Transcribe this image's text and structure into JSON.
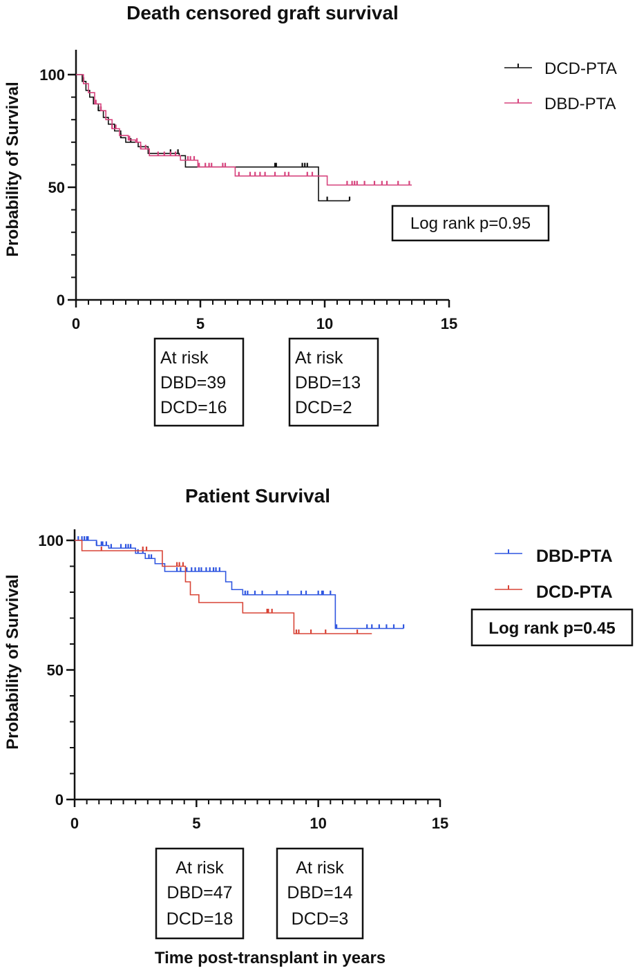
{
  "chart_data": [
    {
      "type": "line",
      "subtype": "kaplan-meier",
      "title": "Death censored graft survival",
      "xlabel": "",
      "ylabel": "Probability of Survival",
      "xlim": [
        0,
        15
      ],
      "ylim": [
        0,
        100
      ],
      "x_ticks": [
        "0",
        "5",
        "10",
        "15"
      ],
      "y_ticks": [
        "0",
        "50",
        "100"
      ],
      "legend_position": "top-right",
      "legend_style": "normal",
      "series": [
        {
          "name": "DCD-PTA",
          "color": "#111111",
          "steps": [
            [
              0,
              100
            ],
            [
              0.25,
              97
            ],
            [
              0.4,
              93
            ],
            [
              0.55,
              90
            ],
            [
              0.7,
              87
            ],
            [
              0.9,
              84
            ],
            [
              1.1,
              81
            ],
            [
              1.3,
              78
            ],
            [
              1.55,
              75
            ],
            [
              1.8,
              72
            ],
            [
              2.0,
              70
            ],
            [
              2.35,
              70
            ],
            [
              2.5,
              68
            ],
            [
              2.9,
              65
            ],
            [
              3.3,
              65
            ],
            [
              4.15,
              64
            ],
            [
              4.4,
              59
            ],
            [
              6.0,
              59
            ],
            [
              9.7,
              59
            ],
            [
              9.75,
              44
            ],
            [
              11.0,
              44
            ]
          ],
          "censor_x": [
            0.3,
            0.9,
            1.0,
            1.8,
            2.2,
            3.8,
            4.1,
            8.0,
            8.05,
            9.1,
            9.2,
            9.3,
            10.1,
            11.0
          ]
        },
        {
          "name": "DBD-PTA",
          "color": "#d6437d",
          "steps": [
            [
              0,
              100
            ],
            [
              0.3,
              96
            ],
            [
              0.5,
              92
            ],
            [
              0.75,
              87
            ],
            [
              1.0,
              84
            ],
            [
              1.2,
              80
            ],
            [
              1.45,
              76
            ],
            [
              1.75,
              73
            ],
            [
              2.1,
              71
            ],
            [
              2.4,
              70
            ],
            [
              2.6,
              67
            ],
            [
              2.95,
              64
            ],
            [
              3.7,
              64
            ],
            [
              4.2,
              62
            ],
            [
              4.9,
              59
            ],
            [
              5.9,
              59
            ],
            [
              6.4,
              55
            ],
            [
              9.5,
              55
            ],
            [
              10.1,
              51
            ],
            [
              13.5,
              51
            ]
          ],
          "censor_x": [
            0.8,
            1.0,
            1.45,
            1.6,
            2.15,
            2.45,
            2.6,
            2.8,
            3.3,
            3.55,
            3.8,
            4.0,
            4.5,
            4.6,
            4.75,
            4.95,
            5.2,
            5.35,
            5.45,
            5.9,
            6.0,
            6.55,
            7.0,
            7.2,
            7.4,
            7.6,
            8.0,
            8.4,
            8.55,
            9.3,
            9.5,
            10.9,
            11.1,
            11.2,
            11.3,
            11.6,
            12.0,
            12.3,
            12.5,
            12.95,
            13.4
          ]
        }
      ],
      "annotation": "Log rank p=0.95",
      "at_risk": [
        {
          "lines": [
            "At risk",
            "DBD=39",
            "DCD=16"
          ]
        },
        {
          "lines": [
            "At risk",
            "DBD=13",
            "DCD=2"
          ]
        }
      ]
    },
    {
      "type": "line",
      "subtype": "kaplan-meier",
      "title": "Patient Survival",
      "xlabel": "Time post-transplant in years",
      "ylabel": "Probability of Survival",
      "xlim": [
        0,
        15
      ],
      "ylim": [
        0,
        100
      ],
      "x_ticks": [
        "0",
        "5",
        "10",
        "15"
      ],
      "y_ticks": [
        "0",
        "50",
        "100"
      ],
      "legend_position": "top-right",
      "legend_style": "bold",
      "series": [
        {
          "name": "DBD-PTA",
          "color": "#2f56e0",
          "steps": [
            [
              0,
              100
            ],
            [
              0.9,
              98
            ],
            [
              1.4,
              97
            ],
            [
              2.5,
              95
            ],
            [
              2.9,
              93
            ],
            [
              3.3,
              91
            ],
            [
              3.7,
              88
            ],
            [
              5.95,
              88
            ],
            [
              6.2,
              84
            ],
            [
              6.45,
              81
            ],
            [
              6.9,
              79
            ],
            [
              10.6,
              79
            ],
            [
              10.7,
              66
            ],
            [
              13.5,
              66
            ]
          ],
          "censor_x": [
            0.15,
            0.3,
            0.4,
            0.5,
            0.55,
            0.9,
            1.1,
            1.15,
            1.3,
            1.5,
            1.9,
            2.1,
            2.2,
            2.3,
            2.6,
            2.8,
            3.05,
            3.15,
            4.2,
            4.35,
            4.6,
            4.8,
            4.95,
            5.1,
            5.2,
            5.4,
            5.55,
            5.7,
            5.8,
            5.95,
            7.0,
            7.1,
            7.4,
            7.7,
            8.3,
            8.75,
            9.3,
            9.5,
            10.0,
            10.15,
            10.2,
            10.5,
            10.75,
            12.0,
            12.2,
            12.5,
            12.8,
            13.1,
            13.5
          ]
        },
        {
          "name": "DCD-PTA",
          "color": "#d84436",
          "steps": [
            [
              0,
              100
            ],
            [
              0.3,
              96
            ],
            [
              3.5,
              96
            ],
            [
              3.6,
              90
            ],
            [
              4.5,
              90
            ],
            [
              4.55,
              84
            ],
            [
              4.75,
              79
            ],
            [
              5.1,
              76
            ],
            [
              6.7,
              76
            ],
            [
              6.9,
              72
            ],
            [
              8.9,
              72
            ],
            [
              9.0,
              64
            ],
            [
              12.2,
              64
            ]
          ],
          "censor_x": [
            1.1,
            2.8,
            2.95,
            4.2,
            4.3,
            4.45,
            7.9,
            7.95,
            8.1,
            9.1,
            9.2,
            9.7,
            10.3,
            11.6
          ]
        }
      ],
      "annotation": "Log rank p=0.45",
      "at_risk": [
        {
          "lines": [
            "At risk",
            "DBD=47",
            "DCD=18"
          ]
        },
        {
          "lines": [
            "At risk",
            "DBD=14",
            "DCD=3"
          ]
        }
      ]
    }
  ]
}
